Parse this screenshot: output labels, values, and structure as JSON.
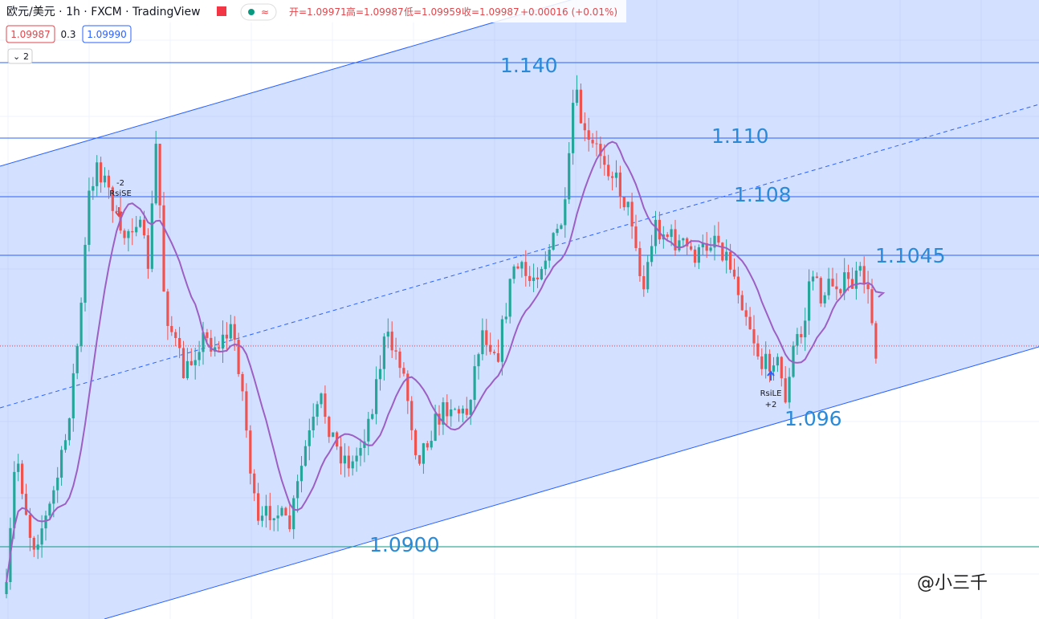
{
  "header": {
    "symbol": "欧元/美元 · 1h · FXCM · TradingView",
    "ohlc": [
      "开=1.09971",
      "高=1.09987",
      "低=1.09959",
      "收=1.09987",
      "+0.00016 (+0.01%)"
    ],
    "sell_price": "1.09987",
    "spread": "0.3",
    "buy_price": "1.09990",
    "indicator_count": "2"
  },
  "annotations": [
    "1.140",
    "1.110",
    "1.108",
    "1.1045",
    "1.096",
    "1.0900"
  ],
  "signals": {
    "short_qty": "-2",
    "short_name": "RsiSE",
    "long_name": "RsiLE",
    "long_qty": "+2"
  },
  "watermark": "@小三千"
}
